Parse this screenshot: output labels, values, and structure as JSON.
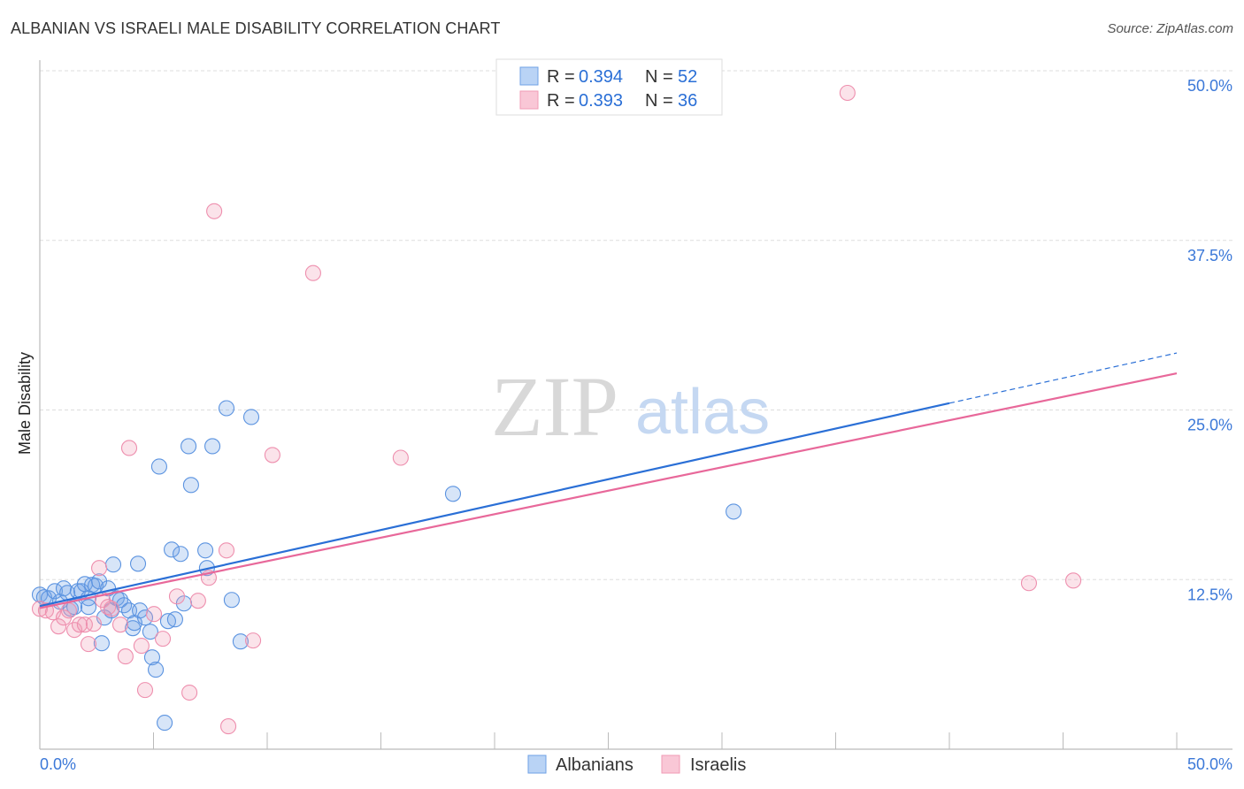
{
  "title": "ALBANIAN VS ISRAELI MALE DISABILITY CORRELATION CHART",
  "source": "Source: ZipAtlas.com",
  "watermark": {
    "zip": "ZIP",
    "atlas": "atlas"
  },
  "legend": {
    "rows": [
      {
        "r_label": "R = ",
        "r_value": "0.394",
        "n_label": "N = ",
        "n_value": "52"
      },
      {
        "r_label": "R = ",
        "r_value": "0.393",
        "n_label": "N = ",
        "n_value": "36"
      }
    ]
  },
  "colors": {
    "albanians": "#6fa1e6",
    "israelis": "#f19bb5",
    "albanians_line": "#2a6fd6",
    "israelis_line": "#e8689a"
  },
  "chart_data": {
    "type": "scatter",
    "title": "ALBANIAN VS ISRAELI MALE DISABILITY CORRELATION CHART",
    "xlabel": "",
    "ylabel": "Male Disability",
    "xlim": [
      0,
      50
    ],
    "ylim": [
      0,
      50
    ],
    "x_tick_labels": [
      "0.0%",
      "50.0%"
    ],
    "y_tick_labels": [
      "12.5%",
      "25.0%",
      "37.5%",
      "50.0%"
    ],
    "y_ticks": [
      12.5,
      25,
      37.5,
      50
    ],
    "grid": true,
    "legend_position": "bottom",
    "series": [
      {
        "name": "Albanians",
        "r": 0.394,
        "n": 52,
        "trend": {
          "x0": 0,
          "y0": 10.55,
          "x1": 40,
          "y1": 25.5,
          "x_dash_end": 50,
          "y_dash_end": 29.2
        },
        "points": [
          [
            0,
            11.39
          ],
          [
            0.19,
            11.2
          ],
          [
            0.39,
            11.13
          ],
          [
            0.66,
            11.65
          ],
          [
            0.89,
            10.87
          ],
          [
            1.05,
            11.85
          ],
          [
            1.21,
            11.52
          ],
          [
            1.36,
            10.35
          ],
          [
            1.52,
            10.48
          ],
          [
            1.67,
            11.65
          ],
          [
            1.83,
            11.65
          ],
          [
            1.98,
            12.17
          ],
          [
            2.14,
            11.13
          ],
          [
            2.3,
            12.11
          ],
          [
            2.45,
            12.04
          ],
          [
            2.61,
            12.37
          ],
          [
            2.84,
            9.7
          ],
          [
            3.0,
            11.85
          ],
          [
            3.15,
            10.22
          ],
          [
            3.23,
            13.61
          ],
          [
            3.38,
            11.13
          ],
          [
            3.54,
            11.0
          ],
          [
            3.7,
            10.61
          ],
          [
            3.93,
            10.22
          ],
          [
            4.09,
            8.92
          ],
          [
            4.16,
            9.31
          ],
          [
            4.32,
            13.67
          ],
          [
            4.4,
            10.22
          ],
          [
            4.63,
            9.7
          ],
          [
            4.86,
            8.66
          ],
          [
            4.94,
            6.77
          ],
          [
            5.1,
            5.86
          ],
          [
            5.25,
            20.83
          ],
          [
            5.49,
            1.95
          ],
          [
            5.64,
            9.44
          ],
          [
            5.8,
            14.71
          ],
          [
            5.95,
            9.57
          ],
          [
            6.19,
            14.39
          ],
          [
            6.34,
            10.74
          ],
          [
            6.54,
            22.33
          ],
          [
            6.65,
            19.47
          ],
          [
            7.28,
            14.65
          ],
          [
            7.35,
            13.35
          ],
          [
            7.59,
            22.33
          ],
          [
            8.21,
            25.13
          ],
          [
            8.44,
            11.0
          ],
          [
            8.83,
            7.94
          ],
          [
            9.3,
            24.48
          ],
          [
            18.17,
            18.82
          ],
          [
            30.51,
            17.51
          ],
          [
            2.72,
            7.81
          ],
          [
            2.14,
            10.48
          ]
        ]
      },
      {
        "name": "Israelis",
        "r": 0.393,
        "n": 36,
        "trend": {
          "x0": 0,
          "y0": 10.4,
          "x1": 50,
          "y1": 27.7
        },
        "points": [
          [
            0,
            10.35
          ],
          [
            0.27,
            10.22
          ],
          [
            0.58,
            10.09
          ],
          [
            0.82,
            9.05
          ],
          [
            1.05,
            9.7
          ],
          [
            1.28,
            10.22
          ],
          [
            1.52,
            8.79
          ],
          [
            1.75,
            9.18
          ],
          [
            1.98,
            9.18
          ],
          [
            2.14,
            7.75
          ],
          [
            2.37,
            9.24
          ],
          [
            2.61,
            13.35
          ],
          [
            2.76,
            11.0
          ],
          [
            3.0,
            10.48
          ],
          [
            3.15,
            10.35
          ],
          [
            3.54,
            9.18
          ],
          [
            3.77,
            6.84
          ],
          [
            3.93,
            22.2
          ],
          [
            4.47,
            7.62
          ],
          [
            4.63,
            4.36
          ],
          [
            5.02,
            9.96
          ],
          [
            5.41,
            8.14
          ],
          [
            6.03,
            11.26
          ],
          [
            6.58,
            4.17
          ],
          [
            6.96,
            10.94
          ],
          [
            7.43,
            12.63
          ],
          [
            7.67,
            39.65
          ],
          [
            8.21,
            14.65
          ],
          [
            8.29,
            1.69
          ],
          [
            9.38,
            8.01
          ],
          [
            10.23,
            21.68
          ],
          [
            12.02,
            35.09
          ],
          [
            15.87,
            21.48
          ],
          [
            35.52,
            48.37
          ],
          [
            43.5,
            12.24
          ],
          [
            45.45,
            12.43
          ]
        ]
      }
    ]
  }
}
